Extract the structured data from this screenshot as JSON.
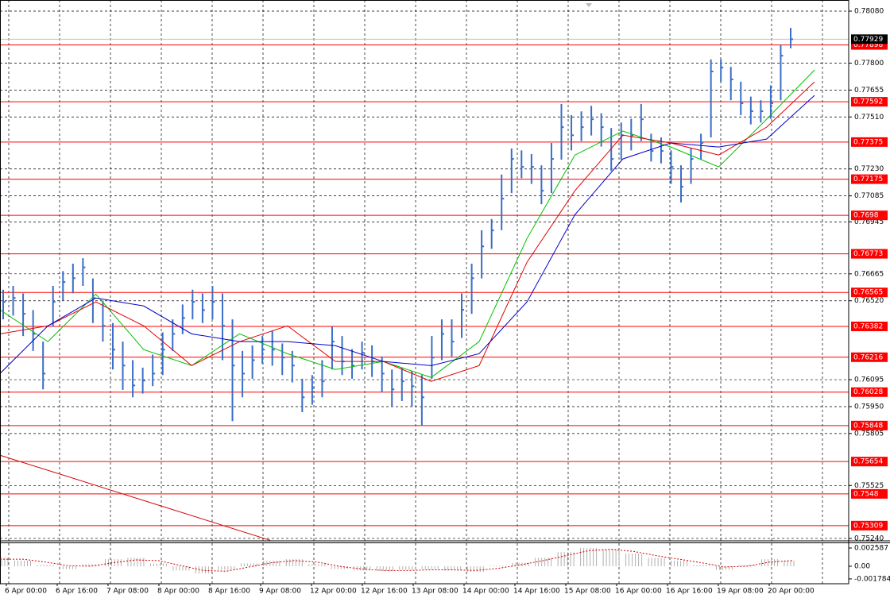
{
  "chart_data": {
    "type": "ohlc",
    "ylim": [
      0.75227,
      0.7814
    ],
    "yticks": [
      {
        "value": 0.7808,
        "label": "0.78080"
      },
      {
        "value": 0.778,
        "label": "0.77800"
      },
      {
        "value": 0.77655,
        "label": "0.77655"
      },
      {
        "value": 0.7751,
        "label": "0.77510"
      },
      {
        "value": 0.7723,
        "label": "0.77230"
      },
      {
        "value": 0.77085,
        "label": "0.77085"
      },
      {
        "value": 0.76945,
        "label": "0.76945"
      },
      {
        "value": 0.76665,
        "label": "0.76665"
      },
      {
        "value": 0.7652,
        "label": "0.76520"
      },
      {
        "value": 0.76095,
        "label": "0.76095"
      },
      {
        "value": 0.7595,
        "label": "0.75950"
      },
      {
        "value": 0.75805,
        "label": "0.75805"
      },
      {
        "value": 0.75525,
        "label": "0.75525"
      },
      {
        "value": 0.7524,
        "label": "0.75240"
      }
    ],
    "x_labels": [
      "6 Apr 00:00",
      "6 Apr 16:00",
      "7 Apr 08:00",
      "8 Apr 00:00",
      "8 Apr 16:00",
      "9 Apr 08:00",
      "12 Apr 00:00",
      "12 Apr 16:00",
      "13 Apr 08:00",
      "14 Apr 00:00",
      "14 Apr 16:00",
      "15 Apr 08:00",
      "16 Apr 00:00",
      "16 Apr 16:00",
      "19 Apr 08:00",
      "20 Apr 00:00"
    ],
    "color": "#3a6ec8",
    "high": [
      0.7658,
      0.766,
      0.7656,
      0.7647,
      0.763,
      0.766,
      0.7668,
      0.7672,
      0.76749,
      0.7664,
      0.7652,
      0.764,
      0.763,
      0.762,
      0.7616,
      0.7623,
      0.7635,
      0.7642,
      0.765,
      0.7658,
      0.7656,
      0.766,
      0.7656,
      0.7642,
      0.7625,
      0.7628,
      0.7633,
      0.7636,
      0.7629,
      0.7625,
      0.761,
      0.7612,
      0.762,
      0.7638,
      0.7633,
      0.7626,
      0.763,
      0.7628,
      0.7622,
      0.7615,
      0.7616,
      0.7614,
      0.7612,
      0.7633,
      0.7642,
      0.7642,
      0.7656,
      0.7672,
      0.769,
      0.7696,
      0.772,
      0.7734,
      0.7733,
      0.7731,
      0.7725,
      0.7737,
      0.7758,
      0.7752,
      0.7754,
      0.7757,
      0.7753,
      0.7745,
      0.7748,
      0.775,
      0.7758,
      0.7742,
      0.774,
      0.7733,
      0.7725,
      0.7734,
      0.7742,
      0.7782,
      0.7782,
      0.7778,
      0.777,
      0.7762,
      0.776,
      0.7768,
      0.779,
      0.7799
    ],
    "low": [
      0.7642,
      0.7644,
      0.7633,
      0.7625,
      0.76043,
      0.7638,
      0.7652,
      0.7656,
      0.766,
      0.764,
      0.763,
      0.7615,
      0.7604,
      0.76,
      0.7602,
      0.7606,
      0.7612,
      0.7625,
      0.7634,
      0.7642,
      0.764,
      0.7642,
      0.762,
      0.75872,
      0.76,
      0.761,
      0.7618,
      0.7617,
      0.7612,
      0.7608,
      0.7592,
      0.7596,
      0.76,
      0.7615,
      0.7612,
      0.761,
      0.7615,
      0.7611,
      0.7603,
      0.7595,
      0.7598,
      0.7595,
      0.7585,
      0.761,
      0.762,
      0.7622,
      0.7632,
      0.7645,
      0.7664,
      0.768,
      0.769,
      0.771,
      0.7718,
      0.7715,
      0.7704,
      0.771,
      0.7728,
      0.7733,
      0.7738,
      0.7741,
      0.7735,
      0.7722,
      0.7728,
      0.7733,
      0.7738,
      0.7727,
      0.7726,
      0.7715,
      0.77049,
      0.7715,
      0.7728,
      0.774,
      0.777,
      0.776,
      0.7752,
      0.7747,
      0.7748,
      0.775,
      0.776,
      0.7788
    ],
    "close": [
      0.76514,
      0.76535,
      0.7645,
      0.76342,
      0.76128,
      0.76514,
      0.76621,
      0.76642,
      0.767,
      0.76535,
      0.76385,
      0.76257,
      0.76171,
      0.76064,
      0.7609,
      0.76128,
      0.76257,
      0.76342,
      0.76428,
      0.76514,
      0.7647,
      0.76514,
      0.76385,
      0.76171,
      0.76128,
      0.762,
      0.76257,
      0.76257,
      0.76214,
      0.76171,
      0.76,
      0.7605,
      0.76086,
      0.763,
      0.76193,
      0.76171,
      0.7624,
      0.76193,
      0.76128,
      0.76043,
      0.76086,
      0.7606,
      0.76,
      0.76214,
      0.76342,
      0.763,
      0.76471,
      0.76642,
      0.76813,
      0.76899,
      0.7707,
      0.77284,
      0.77241,
      0.77241,
      0.77113,
      0.77284,
      0.77455,
      0.77412,
      0.77455,
      0.77498,
      0.77455,
      0.77284,
      0.77412,
      0.77412,
      0.77498,
      0.77327,
      0.77327,
      0.77241,
      0.77134,
      0.77284,
      0.7737,
      0.77755,
      0.77776,
      0.77712,
      0.77584,
      0.77541,
      0.77541,
      0.77584,
      0.7784,
      0.77929
    ],
    "moving_averages": [
      {
        "color": "#00c000",
        "values": [
          0.76471,
          0.763,
          0.76556,
          0.76257,
          0.76171,
          0.76342,
          0.76235,
          0.7615,
          0.76193,
          0.76107,
          0.763,
          0.76856,
          0.77305,
          0.77434,
          0.77348,
          0.77241,
          0.77498,
          0.77763
        ]
      },
      {
        "color": "#e00000",
        "values": [
          0.76342,
          0.76385,
          0.76514,
          0.76385,
          0.76171,
          0.763,
          0.76385,
          0.76193,
          0.76193,
          0.76086,
          0.76171,
          0.76728,
          0.77113,
          0.77412,
          0.7737,
          0.77305,
          0.77455,
          0.77699
        ]
      },
      {
        "color": "#0000c8",
        "values": [
          0.76128,
          0.76385,
          0.76535,
          0.76492,
          0.76342,
          0.763,
          0.763,
          0.76278,
          0.76193,
          0.76171,
          0.76235,
          0.76514,
          0.76984,
          0.77284,
          0.7737,
          0.77348,
          0.77391,
          0.77626
        ]
      }
    ],
    "levels": {
      "color": "#ff0000",
      "values": [
        0.77898,
        0.77592,
        0.77375,
        0.77175,
        0.7698,
        0.76773,
        0.76565,
        0.76382,
        0.76216,
        0.76028,
        0.75848,
        0.75654,
        0.7548,
        0.75309
      ]
    },
    "last_price": 0.77929,
    "trendline": [
      0.75688,
      0.7523
    ],
    "oscillator": {
      "ylim": [
        -0.00247,
        0.00326
      ],
      "yticks": [
        0.002587,
        {
          "value": 0,
          "label": "0.00"
        },
        -0.001784
      ],
      "histogram": [
        0.0012,
        0.0008,
        0.0002,
        -0.0004,
        0.0003,
        0.001,
        0.0012,
        0.0004,
        -0.0006,
        -0.001,
        -0.0005,
        0.0004,
        0.0008,
        0.001,
        0.0003,
        -0.0004,
        -0.0006,
        -0.0007,
        -0.0005,
        -0.0004,
        -0.0006,
        -0.0008,
        0.0001,
        0.0005,
        0.0012,
        0.002,
        0.0026,
        0.0024,
        0.0018,
        0.0012,
        0.0008,
        0.0002,
        -0.0005,
        0.0002,
        0.001,
        0.0008
      ],
      "signal": [
        0.001,
        0.001,
        0.0006,
        0.0001,
        0,
        0.0005,
        0.0009,
        0.0008,
        0.0001,
        -0.0006,
        -0.0007,
        -0.0001,
        0.0005,
        0.0008,
        0.0006,
        0,
        -0.0004,
        -0.0006,
        -0.0006,
        -0.0005,
        -0.0005,
        -0.0006,
        -0.0003,
        0.0002,
        0.0008,
        0.0015,
        0.0022,
        0.0024,
        0.0021,
        0.0015,
        0.001,
        0.0005,
        -0.0001,
        0,
        0.0006,
        0.0008
      ]
    }
  }
}
